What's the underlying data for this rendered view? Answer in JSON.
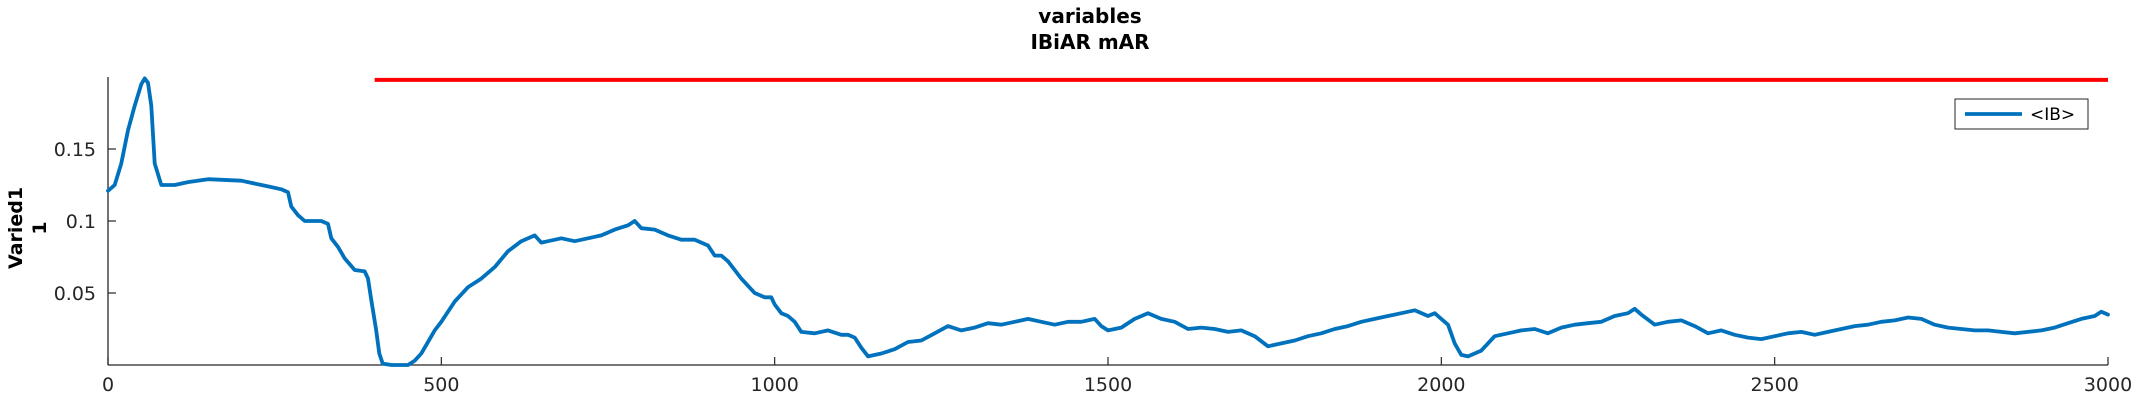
{
  "chart_data": {
    "type": "line",
    "title": "variables",
    "subtitle": "IBiAR mAR",
    "ylabel_line1": "Varied1",
    "ylabel_line2": "1",
    "xlabel": "",
    "xlim": [
      0,
      3000
    ],
    "ylim": [
      0,
      0.2
    ],
    "x_ticks": [
      0,
      500,
      1000,
      1500,
      2000,
      2500,
      3000
    ],
    "x_tick_labels": [
      "0",
      "500",
      "1000",
      "1500",
      "2000",
      "2500",
      "3000"
    ],
    "y_ticks": [
      0.05,
      0.1,
      0.15
    ],
    "y_tick_labels": [
      "0.05",
      "0.1",
      "0.15"
    ],
    "grid": false,
    "legend_position": "top-right",
    "colors": {
      "series": "#0072BD",
      "threshold": "#FF0000",
      "axis": "#262626"
    },
    "threshold": {
      "x": [
        400,
        3000
      ],
      "y": 0.198
    },
    "series": [
      {
        "name": "<IB>",
        "points": [
          [
            0,
            0.121
          ],
          [
            10,
            0.125
          ],
          [
            20,
            0.14
          ],
          [
            30,
            0.163
          ],
          [
            40,
            0.18
          ],
          [
            50,
            0.195
          ],
          [
            55,
            0.199
          ],
          [
            60,
            0.196
          ],
          [
            65,
            0.18
          ],
          [
            70,
            0.14
          ],
          [
            80,
            0.125
          ],
          [
            100,
            0.125
          ],
          [
            120,
            0.127
          ],
          [
            150,
            0.129
          ],
          [
            200,
            0.128
          ],
          [
            240,
            0.124
          ],
          [
            260,
            0.122
          ],
          [
            270,
            0.12
          ],
          [
            275,
            0.11
          ],
          [
            285,
            0.104
          ],
          [
            295,
            0.1
          ],
          [
            320,
            0.1
          ],
          [
            330,
            0.098
          ],
          [
            335,
            0.088
          ],
          [
            345,
            0.082
          ],
          [
            355,
            0.074
          ],
          [
            370,
            0.066
          ],
          [
            385,
            0.065
          ],
          [
            390,
            0.06
          ],
          [
            395,
            0.045
          ],
          [
            402,
            0.025
          ],
          [
            407,
            0.008
          ],
          [
            412,
            0.001
          ],
          [
            425,
            0.0
          ],
          [
            450,
            0.0
          ],
          [
            460,
            0.003
          ],
          [
            470,
            0.008
          ],
          [
            480,
            0.016
          ],
          [
            490,
            0.024
          ],
          [
            500,
            0.03
          ],
          [
            520,
            0.044
          ],
          [
            540,
            0.054
          ],
          [
            560,
            0.06
          ],
          [
            580,
            0.068
          ],
          [
            600,
            0.079
          ],
          [
            620,
            0.086
          ],
          [
            640,
            0.09
          ],
          [
            650,
            0.085
          ],
          [
            660,
            0.086
          ],
          [
            680,
            0.088
          ],
          [
            700,
            0.086
          ],
          [
            720,
            0.088
          ],
          [
            740,
            0.09
          ],
          [
            760,
            0.094
          ],
          [
            780,
            0.097
          ],
          [
            790,
            0.1
          ],
          [
            800,
            0.095
          ],
          [
            820,
            0.094
          ],
          [
            840,
            0.09
          ],
          [
            860,
            0.087
          ],
          [
            880,
            0.087
          ],
          [
            900,
            0.083
          ],
          [
            910,
            0.076
          ],
          [
            920,
            0.076
          ],
          [
            930,
            0.072
          ],
          [
            940,
            0.066
          ],
          [
            950,
            0.06
          ],
          [
            960,
            0.055
          ],
          [
            970,
            0.05
          ],
          [
            985,
            0.047
          ],
          [
            995,
            0.047
          ],
          [
            1000,
            0.042
          ],
          [
            1010,
            0.036
          ],
          [
            1020,
            0.034
          ],
          [
            1030,
            0.03
          ],
          [
            1040,
            0.023
          ],
          [
            1060,
            0.022
          ],
          [
            1080,
            0.024
          ],
          [
            1100,
            0.021
          ],
          [
            1110,
            0.021
          ],
          [
            1120,
            0.019
          ],
          [
            1130,
            0.012
          ],
          [
            1140,
            0.006
          ],
          [
            1160,
            0.008
          ],
          [
            1180,
            0.011
          ],
          [
            1200,
            0.016
          ],
          [
            1220,
            0.017
          ],
          [
            1240,
            0.022
          ],
          [
            1260,
            0.027
          ],
          [
            1280,
            0.024
          ],
          [
            1300,
            0.026
          ],
          [
            1320,
            0.029
          ],
          [
            1340,
            0.028
          ],
          [
            1360,
            0.03
          ],
          [
            1380,
            0.032
          ],
          [
            1400,
            0.03
          ],
          [
            1420,
            0.028
          ],
          [
            1440,
            0.03
          ],
          [
            1460,
            0.03
          ],
          [
            1480,
            0.032
          ],
          [
            1490,
            0.027
          ],
          [
            1500,
            0.024
          ],
          [
            1520,
            0.026
          ],
          [
            1540,
            0.032
          ],
          [
            1560,
            0.036
          ],
          [
            1580,
            0.032
          ],
          [
            1600,
            0.03
          ],
          [
            1620,
            0.025
          ],
          [
            1640,
            0.026
          ],
          [
            1660,
            0.025
          ],
          [
            1680,
            0.023
          ],
          [
            1700,
            0.024
          ],
          [
            1720,
            0.02
          ],
          [
            1740,
            0.013
          ],
          [
            1760,
            0.015
          ],
          [
            1780,
            0.017
          ],
          [
            1800,
            0.02
          ],
          [
            1820,
            0.022
          ],
          [
            1840,
            0.025
          ],
          [
            1860,
            0.027
          ],
          [
            1880,
            0.03
          ],
          [
            1900,
            0.032
          ],
          [
            1920,
            0.034
          ],
          [
            1940,
            0.036
          ],
          [
            1960,
            0.038
          ],
          [
            1980,
            0.034
          ],
          [
            1990,
            0.036
          ],
          [
            2000,
            0.032
          ],
          [
            2010,
            0.028
          ],
          [
            2020,
            0.015
          ],
          [
            2030,
            0.007
          ],
          [
            2040,
            0.006
          ],
          [
            2060,
            0.01
          ],
          [
            2080,
            0.02
          ],
          [
            2100,
            0.022
          ],
          [
            2120,
            0.024
          ],
          [
            2140,
            0.025
          ],
          [
            2160,
            0.022
          ],
          [
            2180,
            0.026
          ],
          [
            2200,
            0.028
          ],
          [
            2220,
            0.029
          ],
          [
            2240,
            0.03
          ],
          [
            2260,
            0.034
          ],
          [
            2280,
            0.036
          ],
          [
            2290,
            0.039
          ],
          [
            2300,
            0.035
          ],
          [
            2320,
            0.028
          ],
          [
            2340,
            0.03
          ],
          [
            2360,
            0.031
          ],
          [
            2380,
            0.027
          ],
          [
            2400,
            0.022
          ],
          [
            2420,
            0.024
          ],
          [
            2440,
            0.021
          ],
          [
            2460,
            0.019
          ],
          [
            2480,
            0.018
          ],
          [
            2500,
            0.02
          ],
          [
            2520,
            0.022
          ],
          [
            2540,
            0.023
          ],
          [
            2560,
            0.021
          ],
          [
            2580,
            0.023
          ],
          [
            2600,
            0.025
          ],
          [
            2620,
            0.027
          ],
          [
            2640,
            0.028
          ],
          [
            2660,
            0.03
          ],
          [
            2680,
            0.031
          ],
          [
            2700,
            0.033
          ],
          [
            2720,
            0.032
          ],
          [
            2740,
            0.028
          ],
          [
            2760,
            0.026
          ],
          [
            2780,
            0.025
          ],
          [
            2800,
            0.024
          ],
          [
            2820,
            0.024
          ],
          [
            2840,
            0.023
          ],
          [
            2860,
            0.022
          ],
          [
            2880,
            0.023
          ],
          [
            2900,
            0.024
          ],
          [
            2920,
            0.026
          ],
          [
            2940,
            0.029
          ],
          [
            2960,
            0.032
          ],
          [
            2980,
            0.034
          ],
          [
            2990,
            0.037
          ],
          [
            3000,
            0.035
          ]
        ]
      }
    ]
  }
}
